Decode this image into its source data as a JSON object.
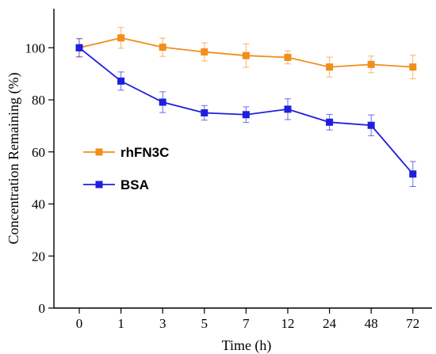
{
  "chart_data": {
    "type": "line",
    "xlabel": "Time (h)",
    "ylabel": "Concentration Remaining (%)",
    "categories": [
      "0",
      "1",
      "3",
      "5",
      "7",
      "12",
      "24",
      "48",
      "72"
    ],
    "ylim": [
      0,
      115
    ],
    "yticks": [
      0,
      20,
      40,
      60,
      80,
      100
    ],
    "grid": false,
    "legend_position": "left-middle",
    "series": [
      {
        "name": "rhFN3C",
        "color": "#F28E1C",
        "marker": "square",
        "values": [
          100,
          103.8,
          100.2,
          98.4,
          97.0,
          96.3,
          92.6,
          93.6,
          92.6
        ],
        "errors": [
          3.5,
          4.0,
          3.5,
          3.5,
          4.5,
          2.5,
          3.8,
          3.2,
          4.5
        ]
      },
      {
        "name": "BSA",
        "color": "#1F1FDD",
        "marker": "square",
        "values": [
          100,
          87.2,
          79.1,
          75.0,
          74.3,
          76.4,
          71.4,
          70.2,
          51.5
        ],
        "errors": [
          3.5,
          3.5,
          4.0,
          2.8,
          3.0,
          4.0,
          3.0,
          4.0,
          4.8
        ]
      }
    ]
  }
}
